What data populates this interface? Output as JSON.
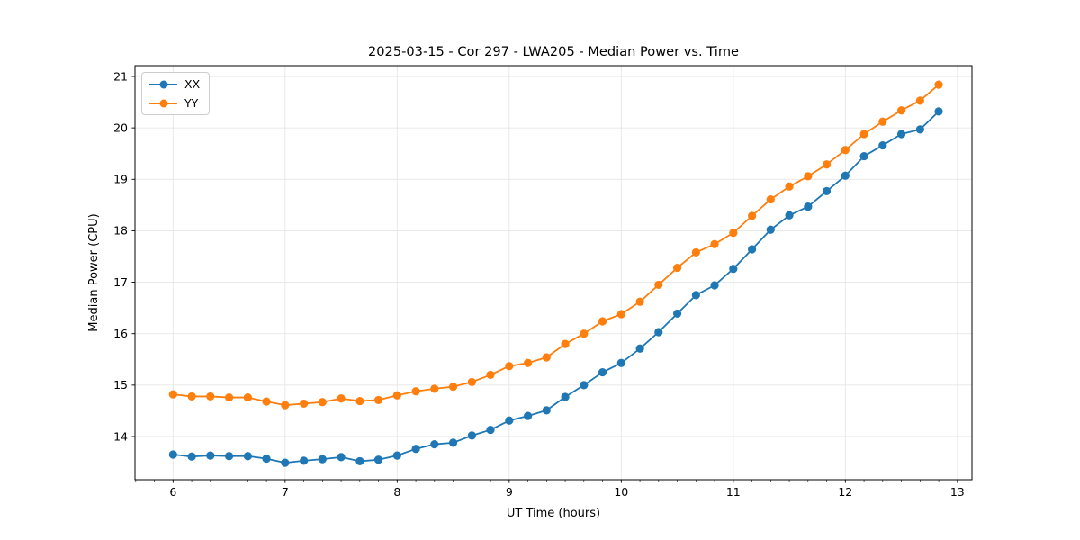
{
  "chart_data": {
    "type": "line",
    "title": "2025-03-15 - Cor 297 - LWA205 - Median Power vs. Time",
    "xlabel": "UT Time (hours)",
    "ylabel": "Median Power (CPU)",
    "xlim": [
      5.66,
      13.13
    ],
    "ylim": [
      13.16,
      21.21
    ],
    "xticks": [
      6,
      7,
      8,
      9,
      10,
      11,
      12,
      13
    ],
    "yticks": [
      14,
      15,
      16,
      17,
      18,
      19,
      20,
      21
    ],
    "x_minor_ticks_per_unit": 6,
    "grid": true,
    "grid_color": "#e6e6e6",
    "legend": {
      "position": "upper-left",
      "entries": [
        "XX",
        "YY"
      ]
    },
    "x": [
      6,
      6.167,
      6.333,
      6.5,
      6.667,
      6.833,
      7,
      7.167,
      7.333,
      7.5,
      7.667,
      7.833,
      8,
      8.167,
      8.333,
      8.5,
      8.667,
      8.833,
      9,
      9.167,
      9.333,
      9.5,
      9.667,
      9.833,
      10,
      10.167,
      10.333,
      10.5,
      10.667,
      10.833,
      11,
      11.167,
      11.333,
      11.5,
      11.667,
      11.833,
      12,
      12.167,
      12.333,
      12.5,
      12.667,
      12.833
    ],
    "series": [
      {
        "name": "XX",
        "color": "#1f77b4",
        "values": [
          13.65,
          13.61,
          13.63,
          13.62,
          13.62,
          13.57,
          13.49,
          13.53,
          13.56,
          13.6,
          13.52,
          13.55,
          13.63,
          13.76,
          13.85,
          13.88,
          14.02,
          14.13,
          14.31,
          14.4,
          14.51,
          14.77,
          15.0,
          15.25,
          15.43,
          15.71,
          16.03,
          16.39,
          16.75,
          16.94,
          17.26,
          17.64,
          18.02,
          18.3,
          18.47,
          18.77,
          19.07,
          19.45,
          19.66,
          19.88,
          19.97,
          20.32
        ]
      },
      {
        "name": "YY",
        "color": "#ff7f0e",
        "values": [
          14.82,
          14.78,
          14.78,
          14.76,
          14.76,
          14.68,
          14.61,
          14.64,
          14.67,
          14.74,
          14.69,
          14.71,
          14.8,
          14.88,
          14.93,
          14.97,
          15.06,
          15.2,
          15.37,
          15.43,
          15.54,
          15.8,
          16.0,
          16.24,
          16.38,
          16.62,
          16.95,
          17.28,
          17.58,
          17.74,
          17.96,
          18.29,
          18.61,
          18.86,
          19.06,
          19.29,
          19.57,
          19.88,
          20.12,
          20.34,
          20.53,
          20.84
        ]
      }
    ]
  }
}
